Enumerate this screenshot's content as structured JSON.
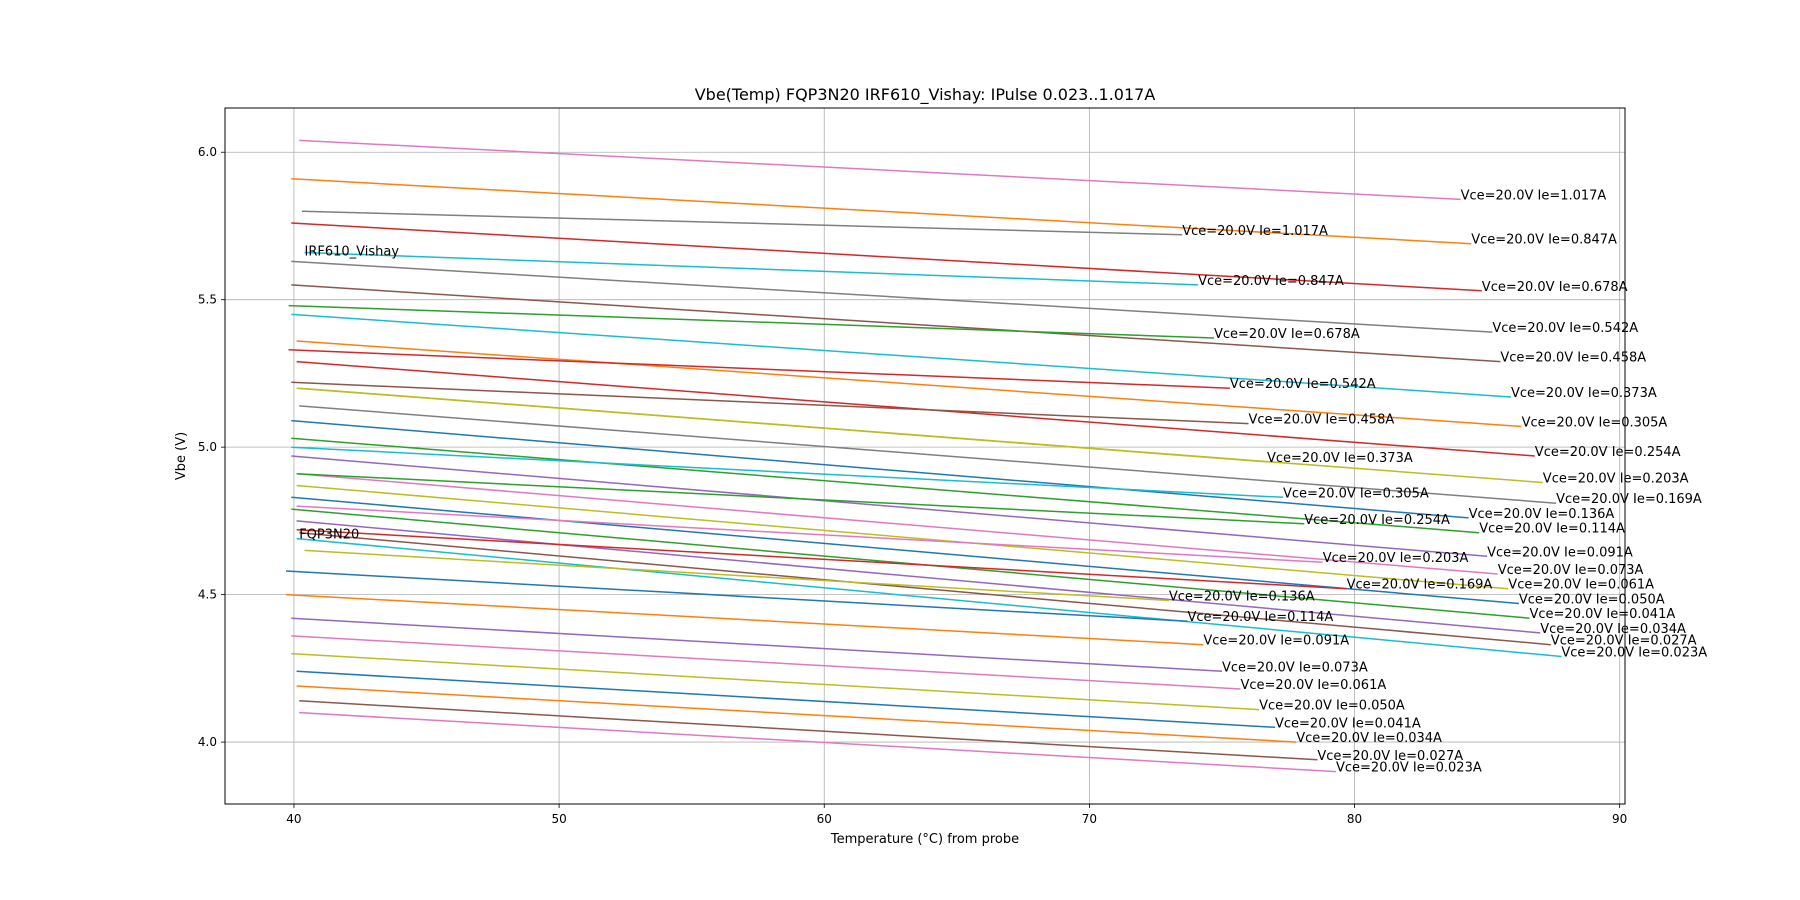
{
  "chart_data": {
    "type": "line",
    "title": "Vbe(Temp) FQP3N20 IRF610_Vishay: IPulse 0.023..1.017A",
    "xlabel": "Temperature (°C) from probe",
    "ylabel": "Vbe (V)",
    "xlim": [
      37.4,
      90.2
    ],
    "ylim": [
      3.79,
      6.15
    ],
    "xticks": [
      40,
      50,
      60,
      70,
      80,
      90
    ],
    "yticks": [
      4.0,
      4.5,
      5.0,
      5.5,
      6.0
    ],
    "grid": true,
    "annotations": [
      {
        "text": "IRF610_Vishay",
        "x": 40.4,
        "y": 5.65
      },
      {
        "text": "FQP3N20",
        "x": 40.2,
        "y": 4.69
      }
    ],
    "series": [
      {
        "name": "Vce=20.0V Ie=1.017A",
        "color": "#e377c2",
        "x": [
          40.2,
          84.0
        ],
        "y": [
          6.04,
          5.84
        ]
      },
      {
        "name": "Vce=20.0V Ie=0.847A",
        "color": "#ff7f0e",
        "x": [
          39.9,
          84.4
        ],
        "y": [
          5.91,
          5.69
        ]
      },
      {
        "name": "Vce=20.0V Ie=0.678A",
        "color": "#d62728",
        "x": [
          39.9,
          84.8
        ],
        "y": [
          5.76,
          5.53
        ]
      },
      {
        "name": "Vce=20.0V Ie=0.542A",
        "color": "#7f7f7f",
        "x": [
          39.9,
          85.2
        ],
        "y": [
          5.63,
          5.39
        ]
      },
      {
        "name": "Vce=20.0V Ie=0.458A",
        "color": "#8c564b",
        "x": [
          39.9,
          85.5
        ],
        "y": [
          5.55,
          5.29
        ]
      },
      {
        "name": "Vce=20.0V Ie=0.373A",
        "color": "#17becf",
        "x": [
          39.9,
          85.9
        ],
        "y": [
          5.45,
          5.17
        ]
      },
      {
        "name": "Vce=20.0V Ie=0.305A",
        "color": "#ff7f0e",
        "x": [
          40.1,
          86.3
        ],
        "y": [
          5.36,
          5.07
        ]
      },
      {
        "name": "Vce=20.0V Ie=0.254A",
        "color": "#d62728",
        "x": [
          40.1,
          86.8
        ],
        "y": [
          5.29,
          4.97
        ]
      },
      {
        "name": "Vce=20.0V Ie=0.203A",
        "color": "#bcbd22",
        "x": [
          40.2,
          87.1
        ],
        "y": [
          5.2,
          4.88
        ]
      },
      {
        "name": "Vce=20.0V Ie=0.169A",
        "color": "#7f7f7f",
        "x": [
          40.2,
          87.6
        ],
        "y": [
          5.14,
          4.81
        ]
      },
      {
        "name": "Vce=20.0V Ie=0.136A",
        "color": "#1f77b4",
        "x": [
          39.9,
          84.3
        ],
        "y": [
          5.09,
          4.76
        ]
      },
      {
        "name": "Vce=20.0V Ie=0.114A",
        "color": "#2ca02c",
        "x": [
          39.9,
          84.7
        ],
        "y": [
          5.03,
          4.71
        ]
      },
      {
        "name": "Vce=20.0V Ie=0.091A",
        "color": "#9467bd",
        "x": [
          39.9,
          85.0
        ],
        "y": [
          4.97,
          4.63
        ]
      },
      {
        "name": "Vce=20.0V Ie=0.073A",
        "color": "#e377c2",
        "x": [
          40.1,
          85.4
        ],
        "y": [
          4.91,
          4.57
        ]
      },
      {
        "name": "Vce=20.0V Ie=0.061A",
        "color": "#bcbd22",
        "x": [
          40.1,
          85.8
        ],
        "y": [
          4.87,
          4.52
        ]
      },
      {
        "name": "Vce=20.0V Ie=0.050A",
        "color": "#1f77b4",
        "x": [
          39.9,
          86.2
        ],
        "y": [
          4.83,
          4.47
        ]
      },
      {
        "name": "Vce=20.0V Ie=0.041A",
        "color": "#2ca02c",
        "x": [
          39.9,
          86.6
        ],
        "y": [
          4.79,
          4.42
        ]
      },
      {
        "name": "Vce=20.0V Ie=0.034A",
        "color": "#9467bd",
        "x": [
          40.1,
          87.0
        ],
        "y": [
          4.75,
          4.37
        ]
      },
      {
        "name": "Vce=20.0V Ie=0.027A",
        "color": "#8c564b",
        "x": [
          40.2,
          87.4
        ],
        "y": [
          4.71,
          4.33
        ]
      },
      {
        "name": "Vce=20.0V Ie=0.023A",
        "color": "#17becf",
        "x": [
          40.1,
          87.8
        ],
        "y": [
          4.69,
          4.29
        ]
      },
      {
        "name": "Vce=20.0V Ie=1.017A",
        "color": "#7f7f7f",
        "x": [
          40.3,
          73.5
        ],
        "y": [
          5.8,
          5.72
        ]
      },
      {
        "name": "Vce=20.0V Ie=0.847A",
        "color": "#17becf",
        "x": [
          40.4,
          74.1
        ],
        "y": [
          5.66,
          5.55
        ]
      },
      {
        "name": "Vce=20.0V Ie=0.678A",
        "color": "#2ca02c",
        "x": [
          39.8,
          74.7
        ],
        "y": [
          5.48,
          5.37
        ]
      },
      {
        "name": "Vce=20.0V Ie=0.542A",
        "color": "#d62728",
        "x": [
          39.8,
          75.3
        ],
        "y": [
          5.33,
          5.2
        ]
      },
      {
        "name": "Vce=20.0V Ie=0.458A",
        "color": "#8c564b",
        "x": [
          39.9,
          76.0
        ],
        "y": [
          5.22,
          5.08
        ]
      },
      {
        "name": "Vce=20.0V Ie=0.373A",
        "color": "#bcbd22",
        "x": [
          40.1,
          76.7
        ],
        "y": [
          5.2,
          4.95
        ]
      },
      {
        "name": "Vce=20.0V Ie=0.305A",
        "color": "#17becf",
        "x": [
          39.9,
          77.3
        ],
        "y": [
          5.0,
          4.83
        ]
      },
      {
        "name": "Vce=20.0V Ie=0.254A",
        "color": "#2ca02c",
        "x": [
          40.1,
          78.1
        ],
        "y": [
          4.91,
          4.74
        ]
      },
      {
        "name": "Vce=20.0V Ie=0.203A",
        "color": "#e377c2",
        "x": [
          40.1,
          78.8
        ],
        "y": [
          4.8,
          4.61
        ]
      },
      {
        "name": "Vce=20.0V Ie=0.169A",
        "color": "#d62728",
        "x": [
          40.1,
          79.7
        ],
        "y": [
          4.72,
          4.52
        ]
      },
      {
        "name": "Vce=20.0V Ie=0.136A",
        "color": "#bcbd22",
        "x": [
          40.4,
          73.0
        ],
        "y": [
          4.65,
          4.48
        ]
      },
      {
        "name": "Vce=20.0V Ie=0.114A",
        "color": "#1f77b4",
        "x": [
          39.7,
          73.7
        ],
        "y": [
          4.58,
          4.41
        ]
      },
      {
        "name": "Vce=20.0V Ie=0.091A",
        "color": "#ff7f0e",
        "x": [
          39.7,
          74.3
        ],
        "y": [
          4.5,
          4.33
        ]
      },
      {
        "name": "Vce=20.0V Ie=0.073A",
        "color": "#9467bd",
        "x": [
          39.9,
          75.0
        ],
        "y": [
          4.42,
          4.24
        ]
      },
      {
        "name": "Vce=20.0V Ie=0.061A",
        "color": "#e377c2",
        "x": [
          39.9,
          75.7
        ],
        "y": [
          4.36,
          4.18
        ]
      },
      {
        "name": "Vce=20.0V Ie=0.050A",
        "color": "#bcbd22",
        "x": [
          39.9,
          76.4
        ],
        "y": [
          4.3,
          4.11
        ]
      },
      {
        "name": "Vce=20.0V Ie=0.041A",
        "color": "#1f77b4",
        "x": [
          40.1,
          77.0
        ],
        "y": [
          4.24,
          4.05
        ]
      },
      {
        "name": "Vce=20.0V Ie=0.034A",
        "color": "#ff7f0e",
        "x": [
          40.1,
          77.8
        ],
        "y": [
          4.19,
          4.0
        ]
      },
      {
        "name": "Vce=20.0V Ie=0.027A",
        "color": "#8c564b",
        "x": [
          40.2,
          78.6
        ],
        "y": [
          4.14,
          3.94
        ]
      },
      {
        "name": "Vce=20.0V Ie=0.023A",
        "color": "#e377c2",
        "x": [
          40.2,
          79.3
        ],
        "y": [
          4.1,
          3.9
        ]
      }
    ]
  }
}
